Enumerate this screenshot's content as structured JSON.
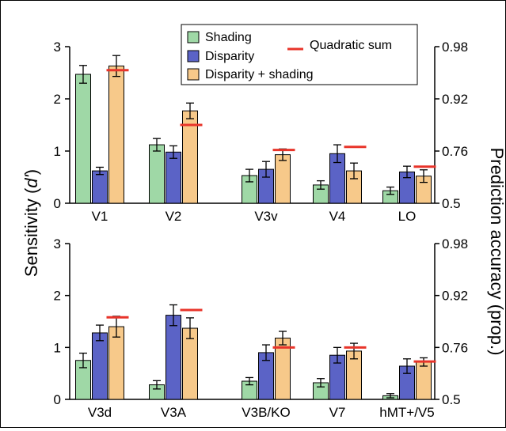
{
  "chart_data": {
    "type": "bar",
    "ylabel_left_prefix": "Sensitivity (",
    "ylabel_left_italic": "d'",
    "ylabel_left_suffix": ")",
    "ylabel_right": "Prediction accuracy (prop.)",
    "left_ticks": [
      "0",
      "1",
      "2",
      "3"
    ],
    "right_ticks": [
      "0.5",
      "0.76",
      "0.92",
      "0.98"
    ],
    "ylim": [
      0,
      3
    ],
    "legend": {
      "shading": "Shading",
      "disparity": "Disparity",
      "combined": "Disparity + shading",
      "quadratic": "Quadratic sum",
      "placement": "top-center"
    },
    "colors": {
      "shading": "#9fd8a6",
      "disparity": "#5b63c6",
      "combined": "#f7c98a",
      "quadratic": "#e8342a"
    },
    "panels": [
      {
        "categories": [
          "V1",
          "V2",
          "V3v",
          "V4",
          "LO"
        ],
        "series": [
          {
            "key": "shading",
            "values": [
              2.47,
              1.12,
              0.53,
              0.35,
              0.24
            ],
            "errors": [
              0.17,
              0.12,
              0.12,
              0.08,
              0.07
            ]
          },
          {
            "key": "disparity",
            "values": [
              0.62,
              0.98,
              0.65,
              0.95,
              0.6
            ],
            "errors": [
              0.07,
              0.12,
              0.15,
              0.17,
              0.11
            ]
          },
          {
            "key": "combined",
            "values": [
              2.63,
              1.77,
              0.93,
              0.62,
              0.52
            ],
            "errors": [
              0.2,
              0.15,
              0.11,
              0.15,
              0.12
            ]
          }
        ],
        "quadratic_sum": [
          2.55,
          1.5,
          1.02,
          1.08,
          0.7
        ]
      },
      {
        "categories": [
          "V3d",
          "V3A",
          "V3B/KO",
          "V7",
          "hMT+/V5"
        ],
        "series": [
          {
            "key": "shading",
            "values": [
              0.75,
              0.28,
              0.35,
              0.32,
              0.07
            ],
            "errors": [
              0.14,
              0.08,
              0.07,
              0.08,
              0.04
            ]
          },
          {
            "key": "disparity",
            "values": [
              1.28,
              1.62,
              0.9,
              0.85,
              0.64
            ],
            "errors": [
              0.15,
              0.2,
              0.15,
              0.15,
              0.14
            ]
          },
          {
            "key": "combined",
            "values": [
              1.4,
              1.37,
              1.18,
              0.93,
              0.72
            ],
            "errors": [
              0.2,
              0.2,
              0.13,
              0.15,
              0.08
            ]
          }
        ],
        "quadratic_sum": [
          1.58,
          1.72,
          1.0,
          1.0,
          0.73
        ]
      }
    ]
  }
}
